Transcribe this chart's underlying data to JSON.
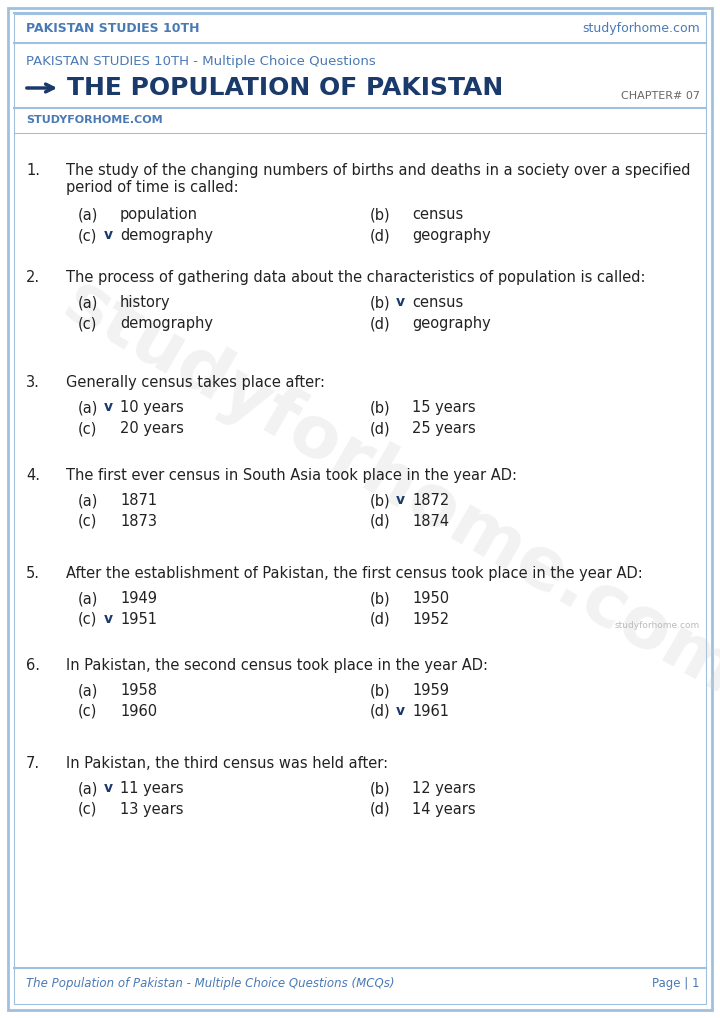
{
  "bg_color": "#ffffff",
  "border_color": "#a0c0e0",
  "header_top_text_left": "PAKISTAN STUDIES 10TH",
  "header_top_text_right": "studyforhome.com",
  "header_top_color": "#4a7ab5",
  "subtitle": "PAKISTAN STUDIES 10TH - Multiple Choice Questions",
  "subtitle_color": "#4a7ab5",
  "main_title": "THE POPULATION OF PAKISTAN",
  "main_title_color": "#1a3a6b",
  "chapter": "CHAPTER# 07",
  "chapter_color": "#666666",
  "website": "STUDYFORHOME.COM",
  "website_color": "#4a7ab5",
  "footer_left": "The Population of Pakistan - Multiple Choice Questions (MCQs)",
  "footer_right": "Page | 1",
  "footer_color": "#4a7ab5",
  "watermark_text": "studyforhome.com",
  "small_watermark": "studyforhome.com",
  "questions": [
    {
      "num": "1.",
      "text": "The study of the changing numbers of births and deaths in a society over a specified\nperiod of time is called:",
      "multiline": true,
      "options": [
        {
          "label": "(a)",
          "check": "",
          "text": "population"
        },
        {
          "label": "(b)",
          "check": "",
          "text": "census"
        },
        {
          "label": "(c)",
          "check": "v",
          "text": "demography"
        },
        {
          "label": "(d)",
          "check": "",
          "text": "geography"
        }
      ]
    },
    {
      "num": "2.",
      "text": "The process of gathering data about the characteristics of population is called:",
      "multiline": false,
      "options": [
        {
          "label": "(a)",
          "check": "",
          "text": "history"
        },
        {
          "label": "(b)",
          "check": "v",
          "text": "census"
        },
        {
          "label": "(c)",
          "check": "",
          "text": "demography"
        },
        {
          "label": "(d)",
          "check": "",
          "text": "geography"
        }
      ]
    },
    {
      "num": "3.",
      "text": "Generally census takes place after:",
      "multiline": false,
      "options": [
        {
          "label": "(a)",
          "check": "v",
          "text": "10 years"
        },
        {
          "label": "(b)",
          "check": "",
          "text": "15 years"
        },
        {
          "label": "(c)",
          "check": "",
          "text": "20 years"
        },
        {
          "label": "(d)",
          "check": "",
          "text": "25 years"
        }
      ]
    },
    {
      "num": "4.",
      "text": "The first ever census in South Asia took place in the year AD:",
      "multiline": false,
      "options": [
        {
          "label": "(a)",
          "check": "",
          "text": "1871"
        },
        {
          "label": "(b)",
          "check": "v",
          "text": "1872"
        },
        {
          "label": "(c)",
          "check": "",
          "text": "1873"
        },
        {
          "label": "(d)",
          "check": "",
          "text": "1874"
        }
      ]
    },
    {
      "num": "5.",
      "text": "After the establishment of Pakistan, the first census took place in the year AD:",
      "multiline": false,
      "options": [
        {
          "label": "(a)",
          "check": "",
          "text": "1949"
        },
        {
          "label": "(b)",
          "check": "",
          "text": "1950"
        },
        {
          "label": "(c)",
          "check": "v",
          "text": "1951"
        },
        {
          "label": "(d)",
          "check": "",
          "text": "1952"
        }
      ]
    },
    {
      "num": "6.",
      "text": "In Pakistan, the second census took place in the year AD:",
      "multiline": false,
      "options": [
        {
          "label": "(a)",
          "check": "",
          "text": "1958"
        },
        {
          "label": "(b)",
          "check": "",
          "text": "1959"
        },
        {
          "label": "(c)",
          "check": "",
          "text": "1960"
        },
        {
          "label": "(d)",
          "check": "v",
          "text": "1961"
        }
      ]
    },
    {
      "num": "7.",
      "text": "In Pakistan, the third census was held after:",
      "multiline": false,
      "options": [
        {
          "label": "(a)",
          "check": "v",
          "text": "11 years"
        },
        {
          "label": "(b)",
          "check": "",
          "text": "12 years"
        },
        {
          "label": "(c)",
          "check": "",
          "text": "13 years"
        },
        {
          "label": "(d)",
          "check": "",
          "text": "14 years"
        }
      ]
    }
  ],
  "text_color": "#222222",
  "option_color": "#222222",
  "check_color": "#1a3a6b",
  "num_color": "#222222"
}
